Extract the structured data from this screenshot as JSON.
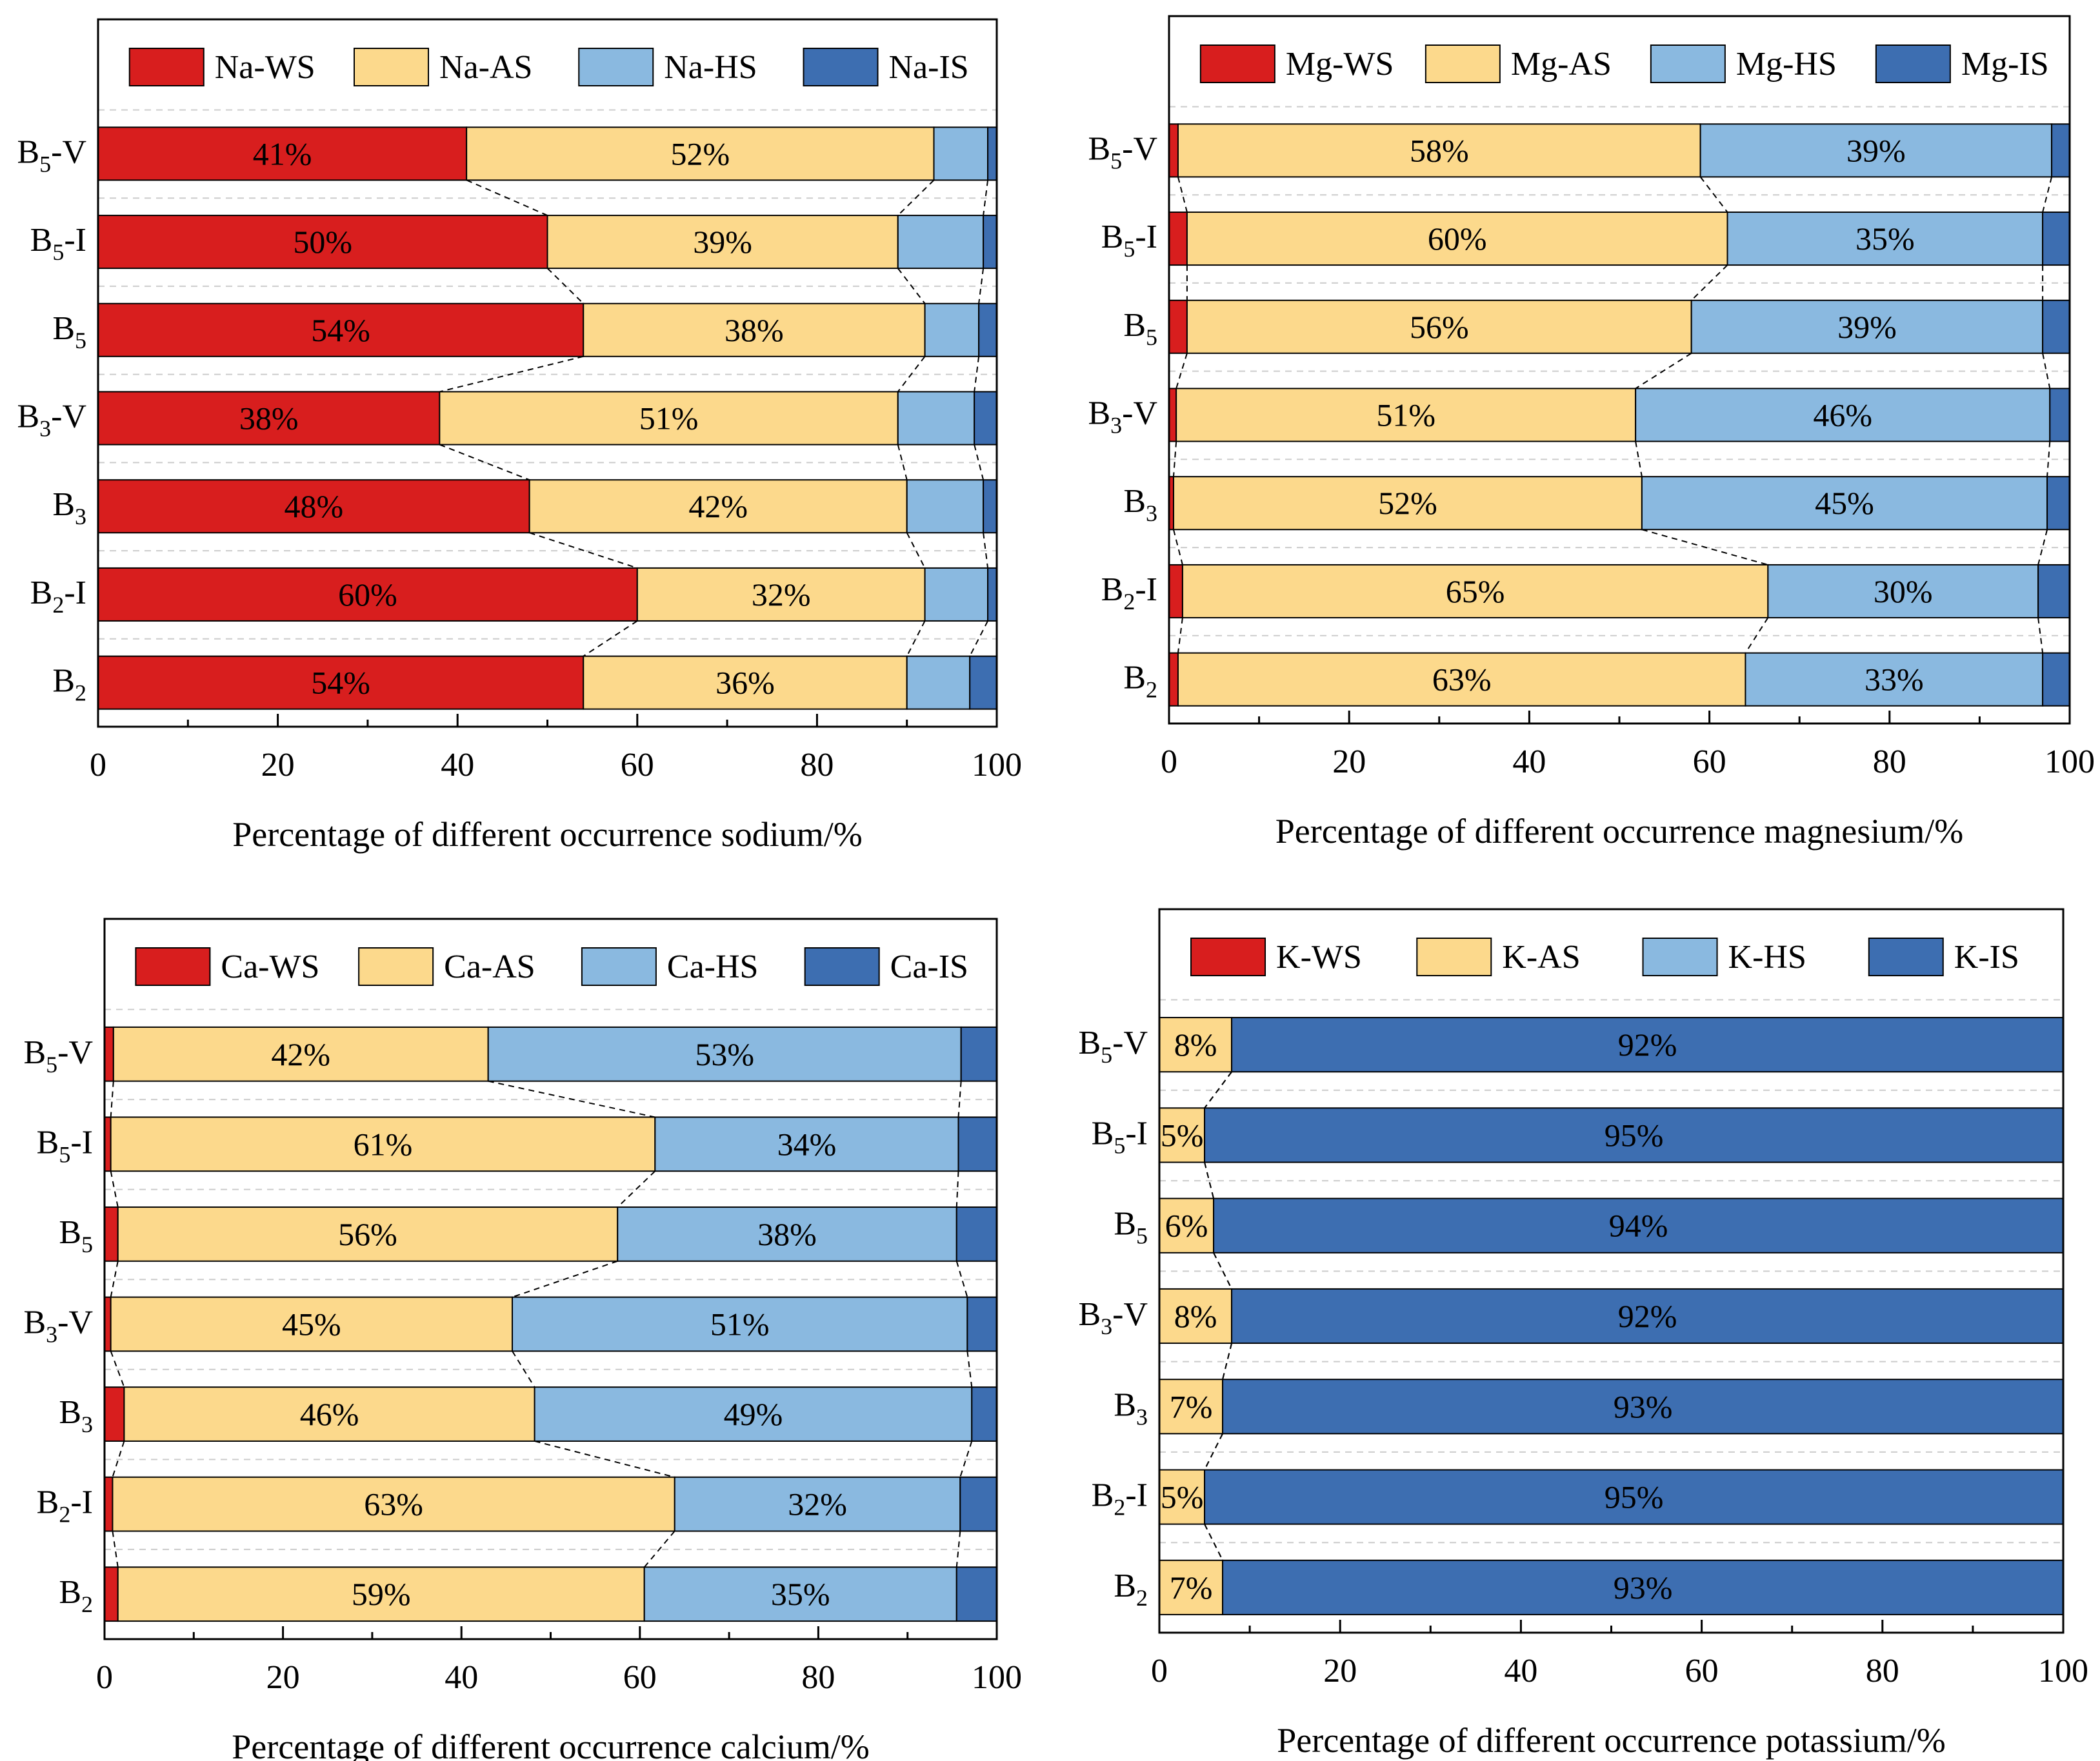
{
  "figure": {
    "colors": {
      "WS": "#d81e1e",
      "AS": "#fcd98c",
      "HS": "#8ab9e0",
      "IS": "#3d6eb1"
    }
  },
  "chart_data": [
    {
      "type": "bar",
      "orientation": "horizontal",
      "stacked": true,
      "element": "Na",
      "title": "",
      "xlabel": "Percentage of different occurrence sodium/%",
      "ylabel": "",
      "xlim": [
        0,
        100
      ],
      "xticks": [
        "0",
        "20",
        "40",
        "60",
        "80",
        "100"
      ],
      "legend_position": "top",
      "categories": [
        {
          "base": "B",
          "sub": "5",
          "suffix": "-V"
        },
        {
          "base": "B",
          "sub": "5",
          "suffix": "-I"
        },
        {
          "base": "B",
          "sub": "5",
          "suffix": ""
        },
        {
          "base": "B",
          "sub": "3",
          "suffix": "-V"
        },
        {
          "base": "B",
          "sub": "3",
          "suffix": ""
        },
        {
          "base": "B",
          "sub": "2",
          "suffix": "-I"
        },
        {
          "base": "B",
          "sub": "2",
          "suffix": ""
        }
      ],
      "series": [
        {
          "name": "Na-WS",
          "key": "WS",
          "values": [
            41,
            50,
            54,
            38,
            48,
            60,
            54
          ],
          "labels": [
            "41%",
            "50%",
            "54%",
            "38%",
            "48%",
            "60%",
            "54%"
          ]
        },
        {
          "name": "Na-AS",
          "key": "AS",
          "values": [
            52,
            39,
            38,
            51,
            42,
            32,
            36
          ],
          "labels": [
            "52%",
            "39%",
            "38%",
            "51%",
            "42%",
            "32%",
            "36%"
          ]
        },
        {
          "name": "Na-HS",
          "key": "HS",
          "values": [
            6,
            9.5,
            6,
            8.5,
            8.5,
            7,
            7
          ],
          "labels": [
            "",
            "",
            "",
            "",
            "",
            "",
            ""
          ]
        },
        {
          "name": "Na-IS",
          "key": "IS",
          "values": [
            1,
            1.5,
            2,
            2.5,
            1.5,
            1,
            3
          ],
          "labels": [
            "",
            "",
            "",
            "",
            "",
            "",
            ""
          ]
        }
      ]
    },
    {
      "type": "bar",
      "orientation": "horizontal",
      "stacked": true,
      "element": "Mg",
      "title": "",
      "xlabel": "Percentage of different occurrence magnesium/%",
      "ylabel": "",
      "xlim": [
        0,
        100
      ],
      "xticks": [
        "0",
        "20",
        "40",
        "60",
        "80",
        "100"
      ],
      "legend_position": "top",
      "categories": [
        {
          "base": "B",
          "sub": "5",
          "suffix": "-V"
        },
        {
          "base": "B",
          "sub": "5",
          "suffix": "-I"
        },
        {
          "base": "B",
          "sub": "5",
          "suffix": ""
        },
        {
          "base": "B",
          "sub": "3",
          "suffix": "-V"
        },
        {
          "base": "B",
          "sub": "3",
          "suffix": ""
        },
        {
          "base": "B",
          "sub": "2",
          "suffix": "-I"
        },
        {
          "base": "B",
          "sub": "2",
          "suffix": ""
        }
      ],
      "series": [
        {
          "name": "Mg-WS",
          "key": "WS",
          "values": [
            1,
            2,
            2,
            0.8,
            0.5,
            1.5,
            1
          ],
          "labels": [
            "",
            "",
            "",
            "",
            "",
            "",
            ""
          ]
        },
        {
          "name": "Mg-AS",
          "key": "AS",
          "values": [
            58,
            60,
            56,
            51,
            52,
            65,
            63
          ],
          "labels": [
            "58%",
            "60%",
            "56%",
            "51%",
            "52%",
            "65%",
            "63%"
          ]
        },
        {
          "name": "Mg-HS",
          "key": "HS",
          "values": [
            39,
            35,
            39,
            46,
            45,
            30,
            33
          ],
          "labels": [
            "39%",
            "35%",
            "39%",
            "46%",
            "45%",
            "30%",
            "33%"
          ]
        },
        {
          "name": "Mg-IS",
          "key": "IS",
          "values": [
            2,
            3,
            3,
            2.2,
            2.5,
            3.5,
            3
          ],
          "labels": [
            "",
            "",
            "",
            "",
            "",
            "",
            ""
          ]
        }
      ]
    },
    {
      "type": "bar",
      "orientation": "horizontal",
      "stacked": true,
      "element": "Ca",
      "title": "",
      "xlabel": "Percentage of different occurrence calcium/%",
      "ylabel": "",
      "xlim": [
        0,
        100
      ],
      "xticks": [
        "0",
        "20",
        "40",
        "60",
        "80",
        "100"
      ],
      "legend_position": "top",
      "categories": [
        {
          "base": "B",
          "sub": "5",
          "suffix": "-V"
        },
        {
          "base": "B",
          "sub": "5",
          "suffix": "-I"
        },
        {
          "base": "B",
          "sub": "5",
          "suffix": ""
        },
        {
          "base": "B",
          "sub": "3",
          "suffix": "-V"
        },
        {
          "base": "B",
          "sub": "3",
          "suffix": ""
        },
        {
          "base": "B",
          "sub": "2",
          "suffix": "-I"
        },
        {
          "base": "B",
          "sub": "2",
          "suffix": ""
        }
      ],
      "series": [
        {
          "name": "Ca-WS",
          "key": "WS",
          "values": [
            1,
            0.7,
            1.5,
            0.7,
            2.2,
            0.9,
            1.5
          ],
          "labels": [
            "",
            "",
            "",
            "",
            "",
            "",
            ""
          ]
        },
        {
          "name": "Ca-AS",
          "key": "AS",
          "values": [
            42,
            61,
            56,
            45,
            46,
            63,
            59
          ],
          "labels": [
            "42%",
            "61%",
            "56%",
            "45%",
            "46%",
            "63%",
            "59%"
          ]
        },
        {
          "name": "Ca-HS",
          "key": "HS",
          "values": [
            53,
            34,
            38,
            51,
            49,
            32,
            35
          ],
          "labels": [
            "53%",
            "34%",
            "38%",
            "51%",
            "49%",
            "32%",
            "35%"
          ]
        },
        {
          "name": "Ca-IS",
          "key": "IS",
          "values": [
            4,
            4.3,
            4.5,
            3.3,
            2.8,
            4.1,
            4.5
          ],
          "labels": [
            "",
            "",
            "",
            "",
            "",
            "",
            ""
          ]
        }
      ]
    },
    {
      "type": "bar",
      "orientation": "horizontal",
      "stacked": true,
      "element": "K",
      "title": "",
      "xlabel": "Percentage of different occurrence potassium/%",
      "ylabel": "",
      "xlim": [
        0,
        100
      ],
      "xticks": [
        "0",
        "20",
        "40",
        "60",
        "80",
        "100"
      ],
      "legend_position": "top",
      "categories": [
        {
          "base": "B",
          "sub": "5",
          "suffix": "-V"
        },
        {
          "base": "B",
          "sub": "5",
          "suffix": "-I"
        },
        {
          "base": "B",
          "sub": "5",
          "suffix": ""
        },
        {
          "base": "B",
          "sub": "3",
          "suffix": "-V"
        },
        {
          "base": "B",
          "sub": "3",
          "suffix": ""
        },
        {
          "base": "B",
          "sub": "2",
          "suffix": "-I"
        },
        {
          "base": "B",
          "sub": "2",
          "suffix": ""
        }
      ],
      "series": [
        {
          "name": "K-WS",
          "key": "WS",
          "values": [
            0,
            0,
            0,
            0,
            0,
            0,
            0
          ],
          "labels": [
            "",
            "",
            "",
            "",
            "",
            "",
            ""
          ]
        },
        {
          "name": "K-AS",
          "key": "AS",
          "values": [
            8,
            5,
            6,
            8,
            7,
            5,
            7
          ],
          "labels": [
            "8%",
            "5%",
            "6%",
            "8%",
            "7%",
            "5%",
            "7%"
          ]
        },
        {
          "name": "K-HS",
          "key": "HS",
          "values": [
            0,
            0,
            0,
            0,
            0,
            0,
            0
          ],
          "labels": [
            "",
            "",
            "",
            "",
            "",
            "",
            ""
          ]
        },
        {
          "name": "K-IS",
          "key": "IS",
          "values": [
            92,
            95,
            94,
            92,
            93,
            95,
            93
          ],
          "labels": [
            "92%",
            "95%",
            "94%",
            "92%",
            "93%",
            "95%",
            "93%"
          ]
        }
      ]
    }
  ]
}
